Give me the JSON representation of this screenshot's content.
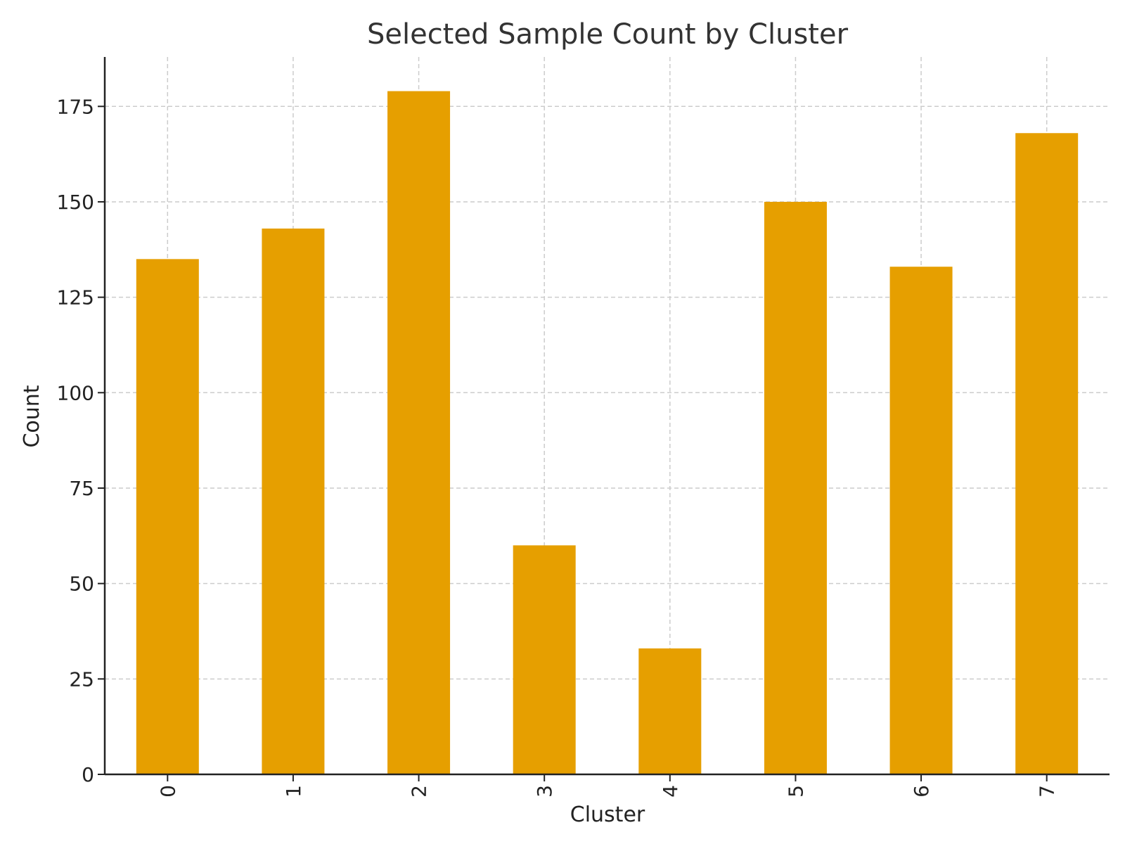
{
  "chart_data": {
    "type": "bar",
    "title": "Selected Sample Count by Cluster",
    "xlabel": "Cluster",
    "ylabel": "Count",
    "categories": [
      "0",
      "1",
      "2",
      "3",
      "4",
      "5",
      "6",
      "7"
    ],
    "values": [
      135,
      143,
      179,
      60,
      33,
      150,
      133,
      168
    ],
    "ylim": [
      0,
      187.95
    ],
    "yticks": [
      0,
      25,
      50,
      75,
      100,
      125,
      150,
      175
    ],
    "bar_color": "#E69F00",
    "grid": true,
    "x_tick_rotation": "vertical"
  }
}
